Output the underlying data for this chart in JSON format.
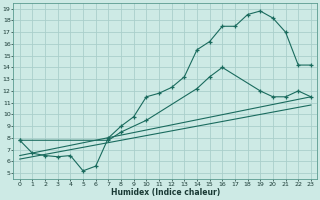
{
  "title": "",
  "xlabel": "Humidex (Indice chaleur)",
  "bg_color": "#cdeae5",
  "grid_color": "#aacfcb",
  "line_color": "#1a6b5e",
  "xlim": [
    -0.5,
    23.5
  ],
  "ylim": [
    4.5,
    19.5
  ],
  "xticks": [
    0,
    1,
    2,
    3,
    4,
    5,
    6,
    7,
    8,
    9,
    10,
    11,
    12,
    13,
    14,
    15,
    16,
    17,
    18,
    19,
    20,
    21,
    22,
    23
  ],
  "yticks": [
    5,
    6,
    7,
    8,
    9,
    10,
    11,
    12,
    13,
    14,
    15,
    16,
    17,
    18,
    19
  ],
  "curve1_x": [
    0,
    1,
    2,
    3,
    4,
    5,
    6,
    7,
    8,
    9,
    10,
    11,
    12,
    13,
    14,
    15,
    16,
    17,
    18,
    19,
    20,
    21,
    22,
    23
  ],
  "curve1_y": [
    7.8,
    6.7,
    6.5,
    6.4,
    6.5,
    5.2,
    5.6,
    8.0,
    9.0,
    9.8,
    11.5,
    11.8,
    12.3,
    13.2,
    15.5,
    16.2,
    17.5,
    17.5,
    18.5,
    18.8,
    18.2,
    17.0,
    14.2,
    14.2
  ],
  "curve2_x": [
    0,
    7,
    8,
    10,
    14,
    15,
    16,
    19,
    20,
    21,
    22,
    23
  ],
  "curve2_y": [
    7.8,
    7.8,
    8.5,
    9.5,
    12.2,
    13.2,
    14.0,
    12.0,
    11.5,
    11.5,
    12.0,
    11.5
  ],
  "line1_x": [
    0,
    23
  ],
  "line1_y": [
    6.5,
    11.5
  ],
  "line2_x": [
    0,
    23
  ],
  "line2_y": [
    6.2,
    10.8
  ]
}
